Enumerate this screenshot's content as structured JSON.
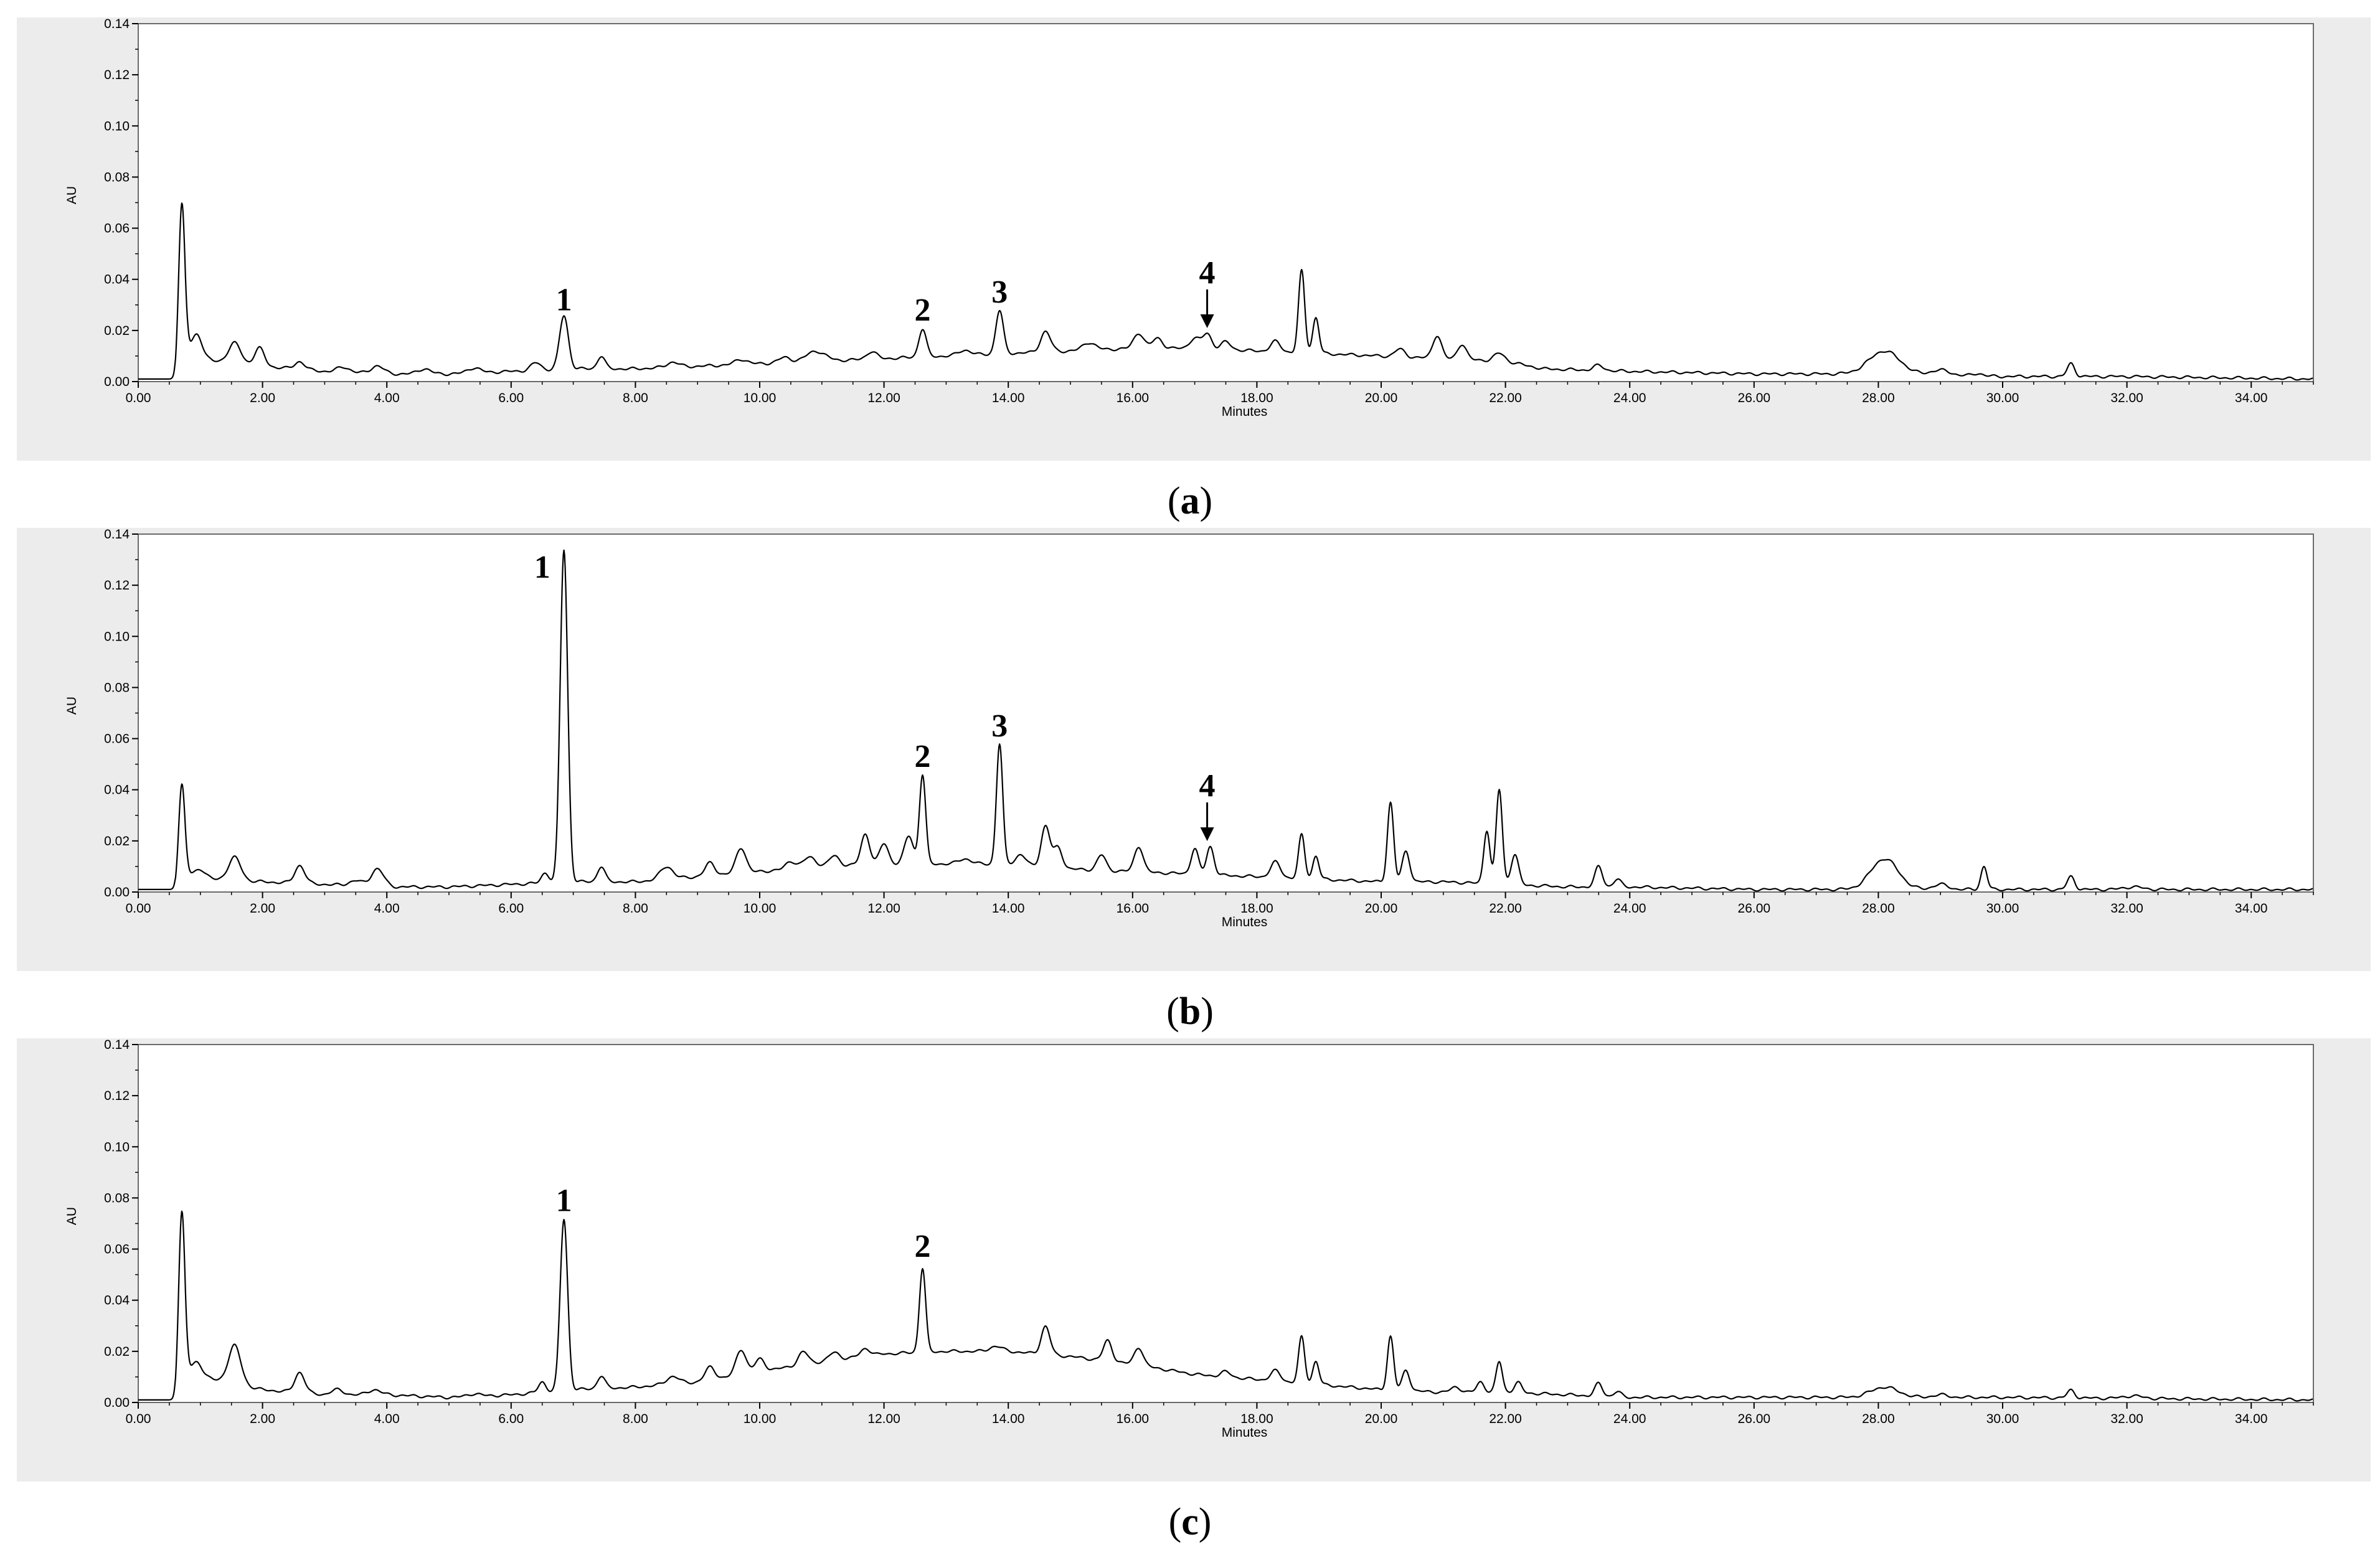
{
  "chart_data": [
    {
      "type": "line",
      "caption_letter": "a",
      "ylabel": "AU",
      "xlabel": "Minutes",
      "xlim": [
        0,
        35
      ],
      "ylim": [
        0,
        0.14
      ],
      "x_ticks": [
        "0.00",
        "2.00",
        "4.00",
        "6.00",
        "8.00",
        "10.00",
        "12.00",
        "14.00",
        "16.00",
        "18.00",
        "20.00",
        "22.00",
        "24.00",
        "26.00",
        "28.00",
        "30.00",
        "32.00",
        "34.00"
      ],
      "y_ticks": [
        "0.00",
        "0.02",
        "0.04",
        "0.06",
        "0.08",
        "0.10",
        "0.12",
        "0.14"
      ],
      "peak_labels": [
        {
          "text": "1",
          "x": 6.85,
          "y": 0.025,
          "arrow": false
        },
        {
          "text": "2",
          "x": 12.62,
          "y": 0.021,
          "arrow": false
        },
        {
          "text": "3",
          "x": 13.86,
          "y": 0.028,
          "arrow": false
        },
        {
          "text": "4",
          "x": 17.2,
          "y": 0.019,
          "arrow": true
        }
      ],
      "baseline": [
        [
          0,
          0.001
        ],
        [
          0.6,
          0.001
        ],
        [
          0.8,
          0.012
        ],
        [
          1.2,
          0.008
        ],
        [
          2,
          0.006
        ],
        [
          3,
          0.004
        ],
        [
          4,
          0.003
        ],
        [
          5,
          0.003
        ],
        [
          6,
          0.004
        ],
        [
          7,
          0.005
        ],
        [
          8,
          0.005
        ],
        [
          9,
          0.006
        ],
        [
          10,
          0.007
        ],
        [
          11,
          0.008
        ],
        [
          12,
          0.009
        ],
        [
          13,
          0.01
        ],
        [
          14,
          0.011
        ],
        [
          15,
          0.012
        ],
        [
          16,
          0.013
        ],
        [
          17,
          0.013
        ],
        [
          18,
          0.012
        ],
        [
          19,
          0.011
        ],
        [
          20,
          0.01
        ],
        [
          21,
          0.009
        ],
        [
          22,
          0.008
        ],
        [
          22.6,
          0.005
        ],
        [
          24,
          0.004
        ],
        [
          26,
          0.003
        ],
        [
          28,
          0.003
        ],
        [
          30,
          0.002
        ],
        [
          32,
          0.002
        ],
        [
          35,
          0.001
        ]
      ],
      "peaks": [
        {
          "x": 0.7,
          "h": 0.063,
          "w": 0.05
        },
        {
          "x": 0.95,
          "h": 0.008,
          "w": 0.08
        },
        {
          "x": 1.55,
          "h": 0.008,
          "w": 0.1
        },
        {
          "x": 1.95,
          "h": 0.007,
          "w": 0.08
        },
        {
          "x": 2.6,
          "h": 0.003,
          "w": 0.08
        },
        {
          "x": 3.3,
          "h": 0.002,
          "w": 0.1
        },
        {
          "x": 3.85,
          "h": 0.003,
          "w": 0.1
        },
        {
          "x": 4.6,
          "h": 0.002,
          "w": 0.1
        },
        {
          "x": 5.4,
          "h": 0.002,
          "w": 0.1
        },
        {
          "x": 6.4,
          "h": 0.003,
          "w": 0.08
        },
        {
          "x": 6.85,
          "h": 0.021,
          "w": 0.07
        },
        {
          "x": 7.45,
          "h": 0.005,
          "w": 0.06
        },
        {
          "x": 8.6,
          "h": 0.002,
          "w": 0.1
        },
        {
          "x": 9.7,
          "h": 0.002,
          "w": 0.1
        },
        {
          "x": 10.4,
          "h": 0.002,
          "w": 0.1
        },
        {
          "x": 10.9,
          "h": 0.004,
          "w": 0.15
        },
        {
          "x": 11.8,
          "h": 0.003,
          "w": 0.08
        },
        {
          "x": 12.62,
          "h": 0.011,
          "w": 0.06
        },
        {
          "x": 13.3,
          "h": 0.002,
          "w": 0.1
        },
        {
          "x": 13.86,
          "h": 0.017,
          "w": 0.06
        },
        {
          "x": 14.6,
          "h": 0.008,
          "w": 0.08
        },
        {
          "x": 15.3,
          "h": 0.003,
          "w": 0.1
        },
        {
          "x": 16.1,
          "h": 0.006,
          "w": 0.08
        },
        {
          "x": 16.4,
          "h": 0.004,
          "w": 0.08
        },
        {
          "x": 17.0,
          "h": 0.004,
          "w": 0.08
        },
        {
          "x": 17.2,
          "h": 0.006,
          "w": 0.07
        },
        {
          "x": 17.5,
          "h": 0.003,
          "w": 0.08
        },
        {
          "x": 18.3,
          "h": 0.004,
          "w": 0.08
        },
        {
          "x": 18.72,
          "h": 0.032,
          "w": 0.05
        },
        {
          "x": 18.95,
          "h": 0.014,
          "w": 0.05
        },
        {
          "x": 20.3,
          "h": 0.003,
          "w": 0.08
        },
        {
          "x": 20.9,
          "h": 0.009,
          "w": 0.07
        },
        {
          "x": 21.3,
          "h": 0.006,
          "w": 0.07
        },
        {
          "x": 21.9,
          "h": 0.003,
          "w": 0.08
        },
        {
          "x": 23.5,
          "h": 0.002,
          "w": 0.08
        },
        {
          "x": 28.1,
          "h": 0.009,
          "w": 0.25
        },
        {
          "x": 29.0,
          "h": 0.002,
          "w": 0.15
        },
        {
          "x": 29.6,
          "h": 0.001,
          "w": 0.08
        },
        {
          "x": 31.1,
          "h": 0.005,
          "w": 0.06
        }
      ]
    },
    {
      "type": "line",
      "caption_letter": "b",
      "ylabel": "AU",
      "xlabel": "Minutes",
      "xlim": [
        0,
        35
      ],
      "ylim": [
        0,
        0.14
      ],
      "x_ticks": [
        "0.00",
        "2.00",
        "4.00",
        "6.00",
        "8.00",
        "10.00",
        "12.00",
        "14.00",
        "16.00",
        "18.00",
        "20.00",
        "22.00",
        "24.00",
        "26.00",
        "28.00",
        "30.00",
        "32.00",
        "34.00"
      ],
      "y_ticks": [
        "0.00",
        "0.02",
        "0.04",
        "0.06",
        "0.08",
        "0.10",
        "0.12",
        "0.14"
      ],
      "peak_labels": [
        {
          "text": "1",
          "x": 6.5,
          "y": 0.12,
          "arrow": false
        },
        {
          "text": "2",
          "x": 12.62,
          "y": 0.046,
          "arrow": false
        },
        {
          "text": "3",
          "x": 13.86,
          "y": 0.058,
          "arrow": false
        },
        {
          "text": "4",
          "x": 17.2,
          "y": 0.018,
          "arrow": true
        }
      ],
      "baseline": [
        [
          0,
          0.001
        ],
        [
          0.6,
          0.001
        ],
        [
          0.8,
          0.007
        ],
        [
          1.2,
          0.005
        ],
        [
          2,
          0.004
        ],
        [
          3,
          0.003
        ],
        [
          4,
          0.002
        ],
        [
          5,
          0.002
        ],
        [
          6,
          0.003
        ],
        [
          7,
          0.004
        ],
        [
          8,
          0.004
        ],
        [
          9,
          0.006
        ],
        [
          10,
          0.008
        ],
        [
          11,
          0.01
        ],
        [
          12,
          0.011
        ],
        [
          13,
          0.011
        ],
        [
          14,
          0.011
        ],
        [
          15,
          0.009
        ],
        [
          16,
          0.008
        ],
        [
          17,
          0.007
        ],
        [
          18,
          0.006
        ],
        [
          19,
          0.005
        ],
        [
          20,
          0.004
        ],
        [
          21,
          0.004
        ],
        [
          22,
          0.003
        ],
        [
          23,
          0.002
        ],
        [
          24,
          0.002
        ],
        [
          26,
          0.001
        ],
        [
          35,
          0.001
        ]
      ],
      "peaks": [
        {
          "x": 0.7,
          "h": 0.038,
          "w": 0.05
        },
        {
          "x": 1.0,
          "h": 0.003,
          "w": 0.08
        },
        {
          "x": 1.55,
          "h": 0.009,
          "w": 0.1
        },
        {
          "x": 2.6,
          "h": 0.007,
          "w": 0.08
        },
        {
          "x": 3.5,
          "h": 0.002,
          "w": 0.1
        },
        {
          "x": 3.85,
          "h": 0.007,
          "w": 0.1
        },
        {
          "x": 6.55,
          "h": 0.004,
          "w": 0.06
        },
        {
          "x": 6.85,
          "h": 0.13,
          "w": 0.06
        },
        {
          "x": 7.45,
          "h": 0.006,
          "w": 0.06
        },
        {
          "x": 8.5,
          "h": 0.005,
          "w": 0.1
        },
        {
          "x": 9.2,
          "h": 0.005,
          "w": 0.08
        },
        {
          "x": 9.7,
          "h": 0.01,
          "w": 0.08
        },
        {
          "x": 10.5,
          "h": 0.003,
          "w": 0.08
        },
        {
          "x": 10.8,
          "h": 0.004,
          "w": 0.1
        },
        {
          "x": 11.2,
          "h": 0.004,
          "w": 0.08
        },
        {
          "x": 11.7,
          "h": 0.012,
          "w": 0.07
        },
        {
          "x": 12.0,
          "h": 0.008,
          "w": 0.07
        },
        {
          "x": 12.4,
          "h": 0.011,
          "w": 0.07
        },
        {
          "x": 12.62,
          "h": 0.035,
          "w": 0.05
        },
        {
          "x": 13.3,
          "h": 0.002,
          "w": 0.1
        },
        {
          "x": 13.86,
          "h": 0.047,
          "w": 0.05
        },
        {
          "x": 14.2,
          "h": 0.004,
          "w": 0.08
        },
        {
          "x": 14.6,
          "h": 0.016,
          "w": 0.07
        },
        {
          "x": 14.8,
          "h": 0.008,
          "w": 0.07
        },
        {
          "x": 15.5,
          "h": 0.006,
          "w": 0.07
        },
        {
          "x": 16.1,
          "h": 0.01,
          "w": 0.07
        },
        {
          "x": 17.0,
          "h": 0.01,
          "w": 0.06
        },
        {
          "x": 17.25,
          "h": 0.011,
          "w": 0.06
        },
        {
          "x": 18.3,
          "h": 0.006,
          "w": 0.08
        },
        {
          "x": 18.72,
          "h": 0.017,
          "w": 0.05
        },
        {
          "x": 18.95,
          "h": 0.009,
          "w": 0.05
        },
        {
          "x": 20.15,
          "h": 0.031,
          "w": 0.05
        },
        {
          "x": 20.4,
          "h": 0.012,
          "w": 0.06
        },
        {
          "x": 21.7,
          "h": 0.021,
          "w": 0.05
        },
        {
          "x": 21.9,
          "h": 0.037,
          "w": 0.05
        },
        {
          "x": 22.15,
          "h": 0.012,
          "w": 0.06
        },
        {
          "x": 23.5,
          "h": 0.008,
          "w": 0.06
        },
        {
          "x": 23.8,
          "h": 0.003,
          "w": 0.06
        },
        {
          "x": 28.1,
          "h": 0.012,
          "w": 0.22
        },
        {
          "x": 29.0,
          "h": 0.002,
          "w": 0.12
        },
        {
          "x": 29.7,
          "h": 0.009,
          "w": 0.05
        },
        {
          "x": 31.1,
          "h": 0.005,
          "w": 0.06
        },
        {
          "x": 32.1,
          "h": 0.001,
          "w": 0.15
        }
      ]
    },
    {
      "type": "line",
      "caption_letter": "c",
      "ylabel": "AU",
      "xlabel": "Minutes",
      "xlim": [
        0,
        35
      ],
      "ylim": [
        0,
        0.14
      ],
      "x_ticks": [
        "0.00",
        "2.00",
        "4.00",
        "6.00",
        "8.00",
        "10.00",
        "12.00",
        "14.00",
        "16.00",
        "18.00",
        "20.00",
        "22.00",
        "24.00",
        "26.00",
        "28.00",
        "30.00",
        "32.00",
        "34.00"
      ],
      "y_ticks": [
        "0.00",
        "0.02",
        "0.04",
        "0.06",
        "0.08",
        "0.10",
        "0.12",
        "0.14"
      ],
      "peak_labels": [
        {
          "text": "1",
          "x": 6.85,
          "y": 0.072,
          "arrow": false
        },
        {
          "text": "2",
          "x": 12.62,
          "y": 0.054,
          "arrow": false
        }
      ],
      "baseline": [
        [
          0,
          0.001
        ],
        [
          0.6,
          0.001
        ],
        [
          0.8,
          0.012
        ],
        [
          1.2,
          0.009
        ],
        [
          2,
          0.005
        ],
        [
          3,
          0.003
        ],
        [
          4,
          0.003
        ],
        [
          5,
          0.002
        ],
        [
          6,
          0.003
        ],
        [
          7,
          0.005
        ],
        [
          8,
          0.006
        ],
        [
          9,
          0.008
        ],
        [
          10,
          0.012
        ],
        [
          11,
          0.016
        ],
        [
          12,
          0.019
        ],
        [
          13,
          0.02
        ],
        [
          14,
          0.02
        ],
        [
          15,
          0.018
        ],
        [
          16,
          0.015
        ],
        [
          17,
          0.011
        ],
        [
          18,
          0.009
        ],
        [
          19,
          0.007
        ],
        [
          20,
          0.005
        ],
        [
          21,
          0.004
        ],
        [
          22,
          0.004
        ],
        [
          23,
          0.003
        ],
        [
          24,
          0.002
        ],
        [
          26,
          0.002
        ],
        [
          30,
          0.002
        ],
        [
          35,
          0.001
        ]
      ],
      "peaks": [
        {
          "x": 0.7,
          "h": 0.068,
          "w": 0.05
        },
        {
          "x": 0.95,
          "h": 0.005,
          "w": 0.08
        },
        {
          "x": 1.55,
          "h": 0.015,
          "w": 0.1
        },
        {
          "x": 2.6,
          "h": 0.008,
          "w": 0.08
        },
        {
          "x": 3.2,
          "h": 0.002,
          "w": 0.1
        },
        {
          "x": 3.8,
          "h": 0.002,
          "w": 0.1
        },
        {
          "x": 5.4,
          "h": 0.001,
          "w": 0.1
        },
        {
          "x": 6.5,
          "h": 0.004,
          "w": 0.06
        },
        {
          "x": 6.85,
          "h": 0.067,
          "w": 0.06
        },
        {
          "x": 7.45,
          "h": 0.005,
          "w": 0.06
        },
        {
          "x": 8.6,
          "h": 0.003,
          "w": 0.1
        },
        {
          "x": 9.2,
          "h": 0.005,
          "w": 0.08
        },
        {
          "x": 9.7,
          "h": 0.01,
          "w": 0.08
        },
        {
          "x": 10.0,
          "h": 0.005,
          "w": 0.08
        },
        {
          "x": 10.7,
          "h": 0.005,
          "w": 0.08
        },
        {
          "x": 11.2,
          "h": 0.003,
          "w": 0.08
        },
        {
          "x": 11.7,
          "h": 0.003,
          "w": 0.08
        },
        {
          "x": 12.62,
          "h": 0.033,
          "w": 0.05
        },
        {
          "x": 13.8,
          "h": 0.002,
          "w": 0.1
        },
        {
          "x": 14.6,
          "h": 0.011,
          "w": 0.07
        },
        {
          "x": 15.6,
          "h": 0.008,
          "w": 0.07
        },
        {
          "x": 16.1,
          "h": 0.007,
          "w": 0.07
        },
        {
          "x": 17.5,
          "h": 0.002,
          "w": 0.08
        },
        {
          "x": 18.3,
          "h": 0.004,
          "w": 0.08
        },
        {
          "x": 18.72,
          "h": 0.018,
          "w": 0.05
        },
        {
          "x": 18.95,
          "h": 0.009,
          "w": 0.05
        },
        {
          "x": 20.15,
          "h": 0.021,
          "w": 0.05
        },
        {
          "x": 20.4,
          "h": 0.008,
          "w": 0.06
        },
        {
          "x": 21.2,
          "h": 0.002,
          "w": 0.08
        },
        {
          "x": 21.6,
          "h": 0.004,
          "w": 0.06
        },
        {
          "x": 21.9,
          "h": 0.012,
          "w": 0.05
        },
        {
          "x": 22.2,
          "h": 0.004,
          "w": 0.06
        },
        {
          "x": 23.5,
          "h": 0.005,
          "w": 0.06
        },
        {
          "x": 23.8,
          "h": 0.002,
          "w": 0.06
        },
        {
          "x": 28.1,
          "h": 0.004,
          "w": 0.22
        },
        {
          "x": 29.0,
          "h": 0.001,
          "w": 0.12
        },
        {
          "x": 31.1,
          "h": 0.003,
          "w": 0.06
        },
        {
          "x": 32.1,
          "h": 0.001,
          "w": 0.15
        }
      ]
    }
  ]
}
